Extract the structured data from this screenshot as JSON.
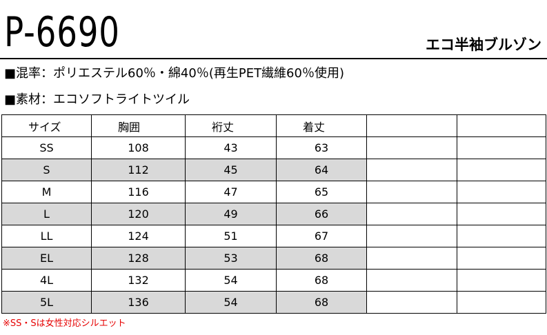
{
  "header": {
    "product_code": "P-6690",
    "product_name": "エコ半袖ブルゾン"
  },
  "specs": {
    "blend": "■混率：ポリエステル60％・綿40％(再生PET繊維60％使用)",
    "material": "■素材：エコソフトライトツイル"
  },
  "size_table": {
    "headers": [
      "サイズ",
      "胸囲",
      "裄丈",
      "着丈",
      "",
      ""
    ],
    "rows": [
      [
        "SS",
        "108",
        "43",
        "63"
      ],
      [
        "S",
        "112",
        "45",
        "64"
      ],
      [
        "M",
        "116",
        "47",
        "65"
      ],
      [
        "L",
        "120",
        "49",
        "66"
      ],
      [
        "LL",
        "124",
        "51",
        "67"
      ],
      [
        "EL",
        "128",
        "53",
        "68"
      ],
      [
        "4L",
        "132",
        "54",
        "68"
      ],
      [
        "5L",
        "136",
        "54",
        "68"
      ]
    ]
  },
  "footnote": "※SS・Sは女性対応シルエット",
  "colors": {
    "row_shade": "#d9d9d9",
    "note": "#e60000"
  }
}
